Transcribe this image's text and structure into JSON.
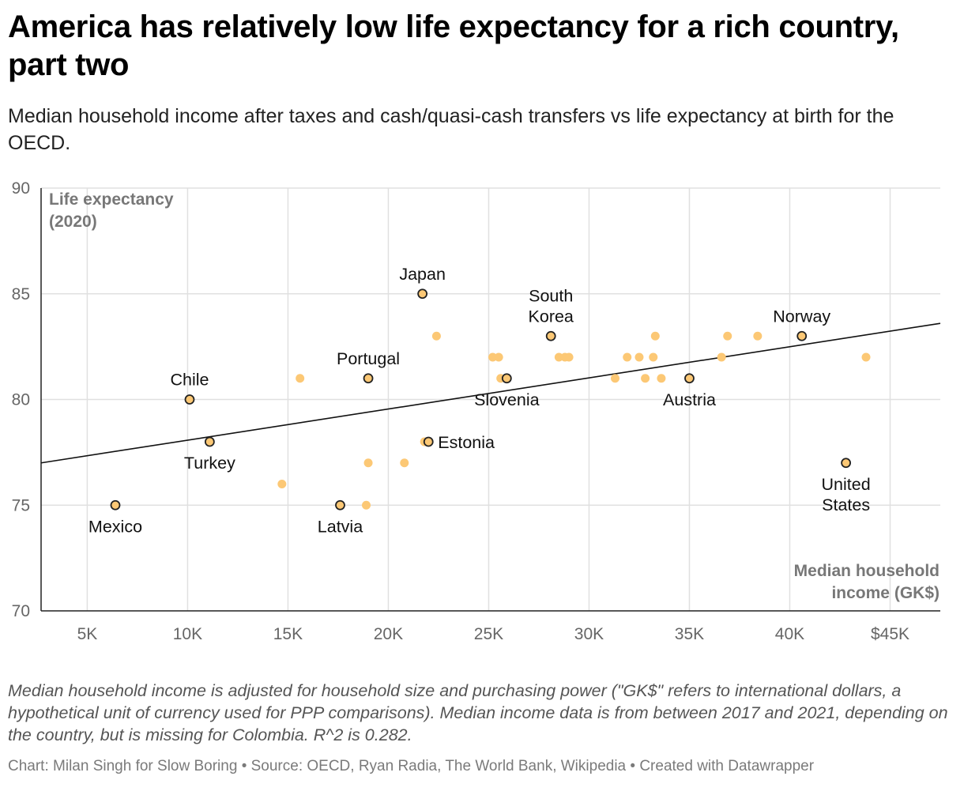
{
  "title": "America has relatively low life expectancy for a rich country, part two",
  "subtitle": "Median household income after taxes and cash/quasi-cash transfers vs life expectancy at birth for the OECD.",
  "notes": "Median household income is adjusted for household size and purchasing power (\"GK$\" refers to international dollars, a hypothetical unit of currency used for PPP comparisons). Median income data is from between 2017 and 2021, depending on the country, but is missing for Colombia. R^2 is 0.282.",
  "credit": "Chart: Milan Singh for Slow Boring • Source: OECD, Ryan Radia, The World Bank, Wikipedia • Created with Datawrapper",
  "colors": {
    "dot": "#fcc875",
    "highlight_fill": "#fcc875",
    "highlight_stroke": "#222222",
    "trend": "#111111",
    "grid": "#e0e0e0"
  },
  "chart_data": {
    "type": "scatter",
    "ylabel_lines": [
      "Life expectancy",
      "(2020)"
    ],
    "xlabel_lines": [
      "Median household",
      "income (GK$)"
    ],
    "xlim": [
      2700,
      47500
    ],
    "ylim": [
      70,
      90
    ],
    "x_ticks": [
      5000,
      10000,
      15000,
      20000,
      25000,
      30000,
      35000,
      40000,
      45000
    ],
    "x_tick_labels": [
      "5K",
      "10K",
      "15K",
      "20K",
      "25K",
      "30K",
      "35K",
      "40K",
      "$45K"
    ],
    "y_ticks": [
      70,
      75,
      80,
      85,
      90
    ],
    "y_tick_labels": [
      "70",
      "75",
      "80",
      "85",
      "90"
    ],
    "grid": true,
    "trendline": {
      "x": [
        2700,
        47500
      ],
      "y": [
        77,
        83.6
      ]
    },
    "highlighted": [
      {
        "name": "Mexico",
        "x": 6400,
        "y": 75,
        "label_lines": [
          "Mexico"
        ],
        "label_pos": "below"
      },
      {
        "name": "Chile",
        "x": 10100,
        "y": 80,
        "label_lines": [
          "Chile"
        ],
        "label_pos": "above"
      },
      {
        "name": "Turkey",
        "x": 11100,
        "y": 78,
        "label_lines": [
          "Turkey"
        ],
        "label_pos": "below"
      },
      {
        "name": "Portugal",
        "x": 19000,
        "y": 81,
        "label_lines": [
          "Portugal"
        ],
        "label_pos": "above"
      },
      {
        "name": "Latvia",
        "x": 17600,
        "y": 75,
        "label_lines": [
          "Latvia"
        ],
        "label_pos": "below"
      },
      {
        "name": "Japan",
        "x": 21700,
        "y": 85,
        "label_lines": [
          "Japan"
        ],
        "label_pos": "above"
      },
      {
        "name": "Estonia",
        "x": 22000,
        "y": 78,
        "label_lines": [
          "Estonia"
        ],
        "label_pos": "right"
      },
      {
        "name": "Slovenia",
        "x": 25900,
        "y": 81,
        "label_lines": [
          "Slovenia"
        ],
        "label_pos": "below"
      },
      {
        "name": "South Korea",
        "x": 28100,
        "y": 83,
        "label_lines": [
          "South",
          "Korea"
        ],
        "label_pos": "above"
      },
      {
        "name": "Austria",
        "x": 35000,
        "y": 81,
        "label_lines": [
          "Austria"
        ],
        "label_pos": "below"
      },
      {
        "name": "Norway",
        "x": 40600,
        "y": 83,
        "label_lines": [
          "Norway"
        ],
        "label_pos": "above"
      },
      {
        "name": "United States",
        "x": 42800,
        "y": 77,
        "label_lines": [
          "United",
          "States"
        ],
        "label_pos": "below"
      }
    ],
    "points": [
      {
        "x": 14700,
        "y": 76
      },
      {
        "x": 15600,
        "y": 81
      },
      {
        "x": 18900,
        "y": 75
      },
      {
        "x": 19000,
        "y": 77
      },
      {
        "x": 20800,
        "y": 77
      },
      {
        "x": 21800,
        "y": 78
      },
      {
        "x": 22400,
        "y": 83
      },
      {
        "x": 25200,
        "y": 82
      },
      {
        "x": 25500,
        "y": 82
      },
      {
        "x": 25600,
        "y": 81
      },
      {
        "x": 28500,
        "y": 82
      },
      {
        "x": 28800,
        "y": 82
      },
      {
        "x": 29000,
        "y": 82
      },
      {
        "x": 31300,
        "y": 81
      },
      {
        "x": 31900,
        "y": 82
      },
      {
        "x": 32500,
        "y": 82
      },
      {
        "x": 32800,
        "y": 81
      },
      {
        "x": 33200,
        "y": 82
      },
      {
        "x": 33300,
        "y": 83
      },
      {
        "x": 33600,
        "y": 81
      },
      {
        "x": 36600,
        "y": 82
      },
      {
        "x": 36900,
        "y": 83
      },
      {
        "x": 38400,
        "y": 83
      },
      {
        "x": 43800,
        "y": 82
      }
    ]
  }
}
